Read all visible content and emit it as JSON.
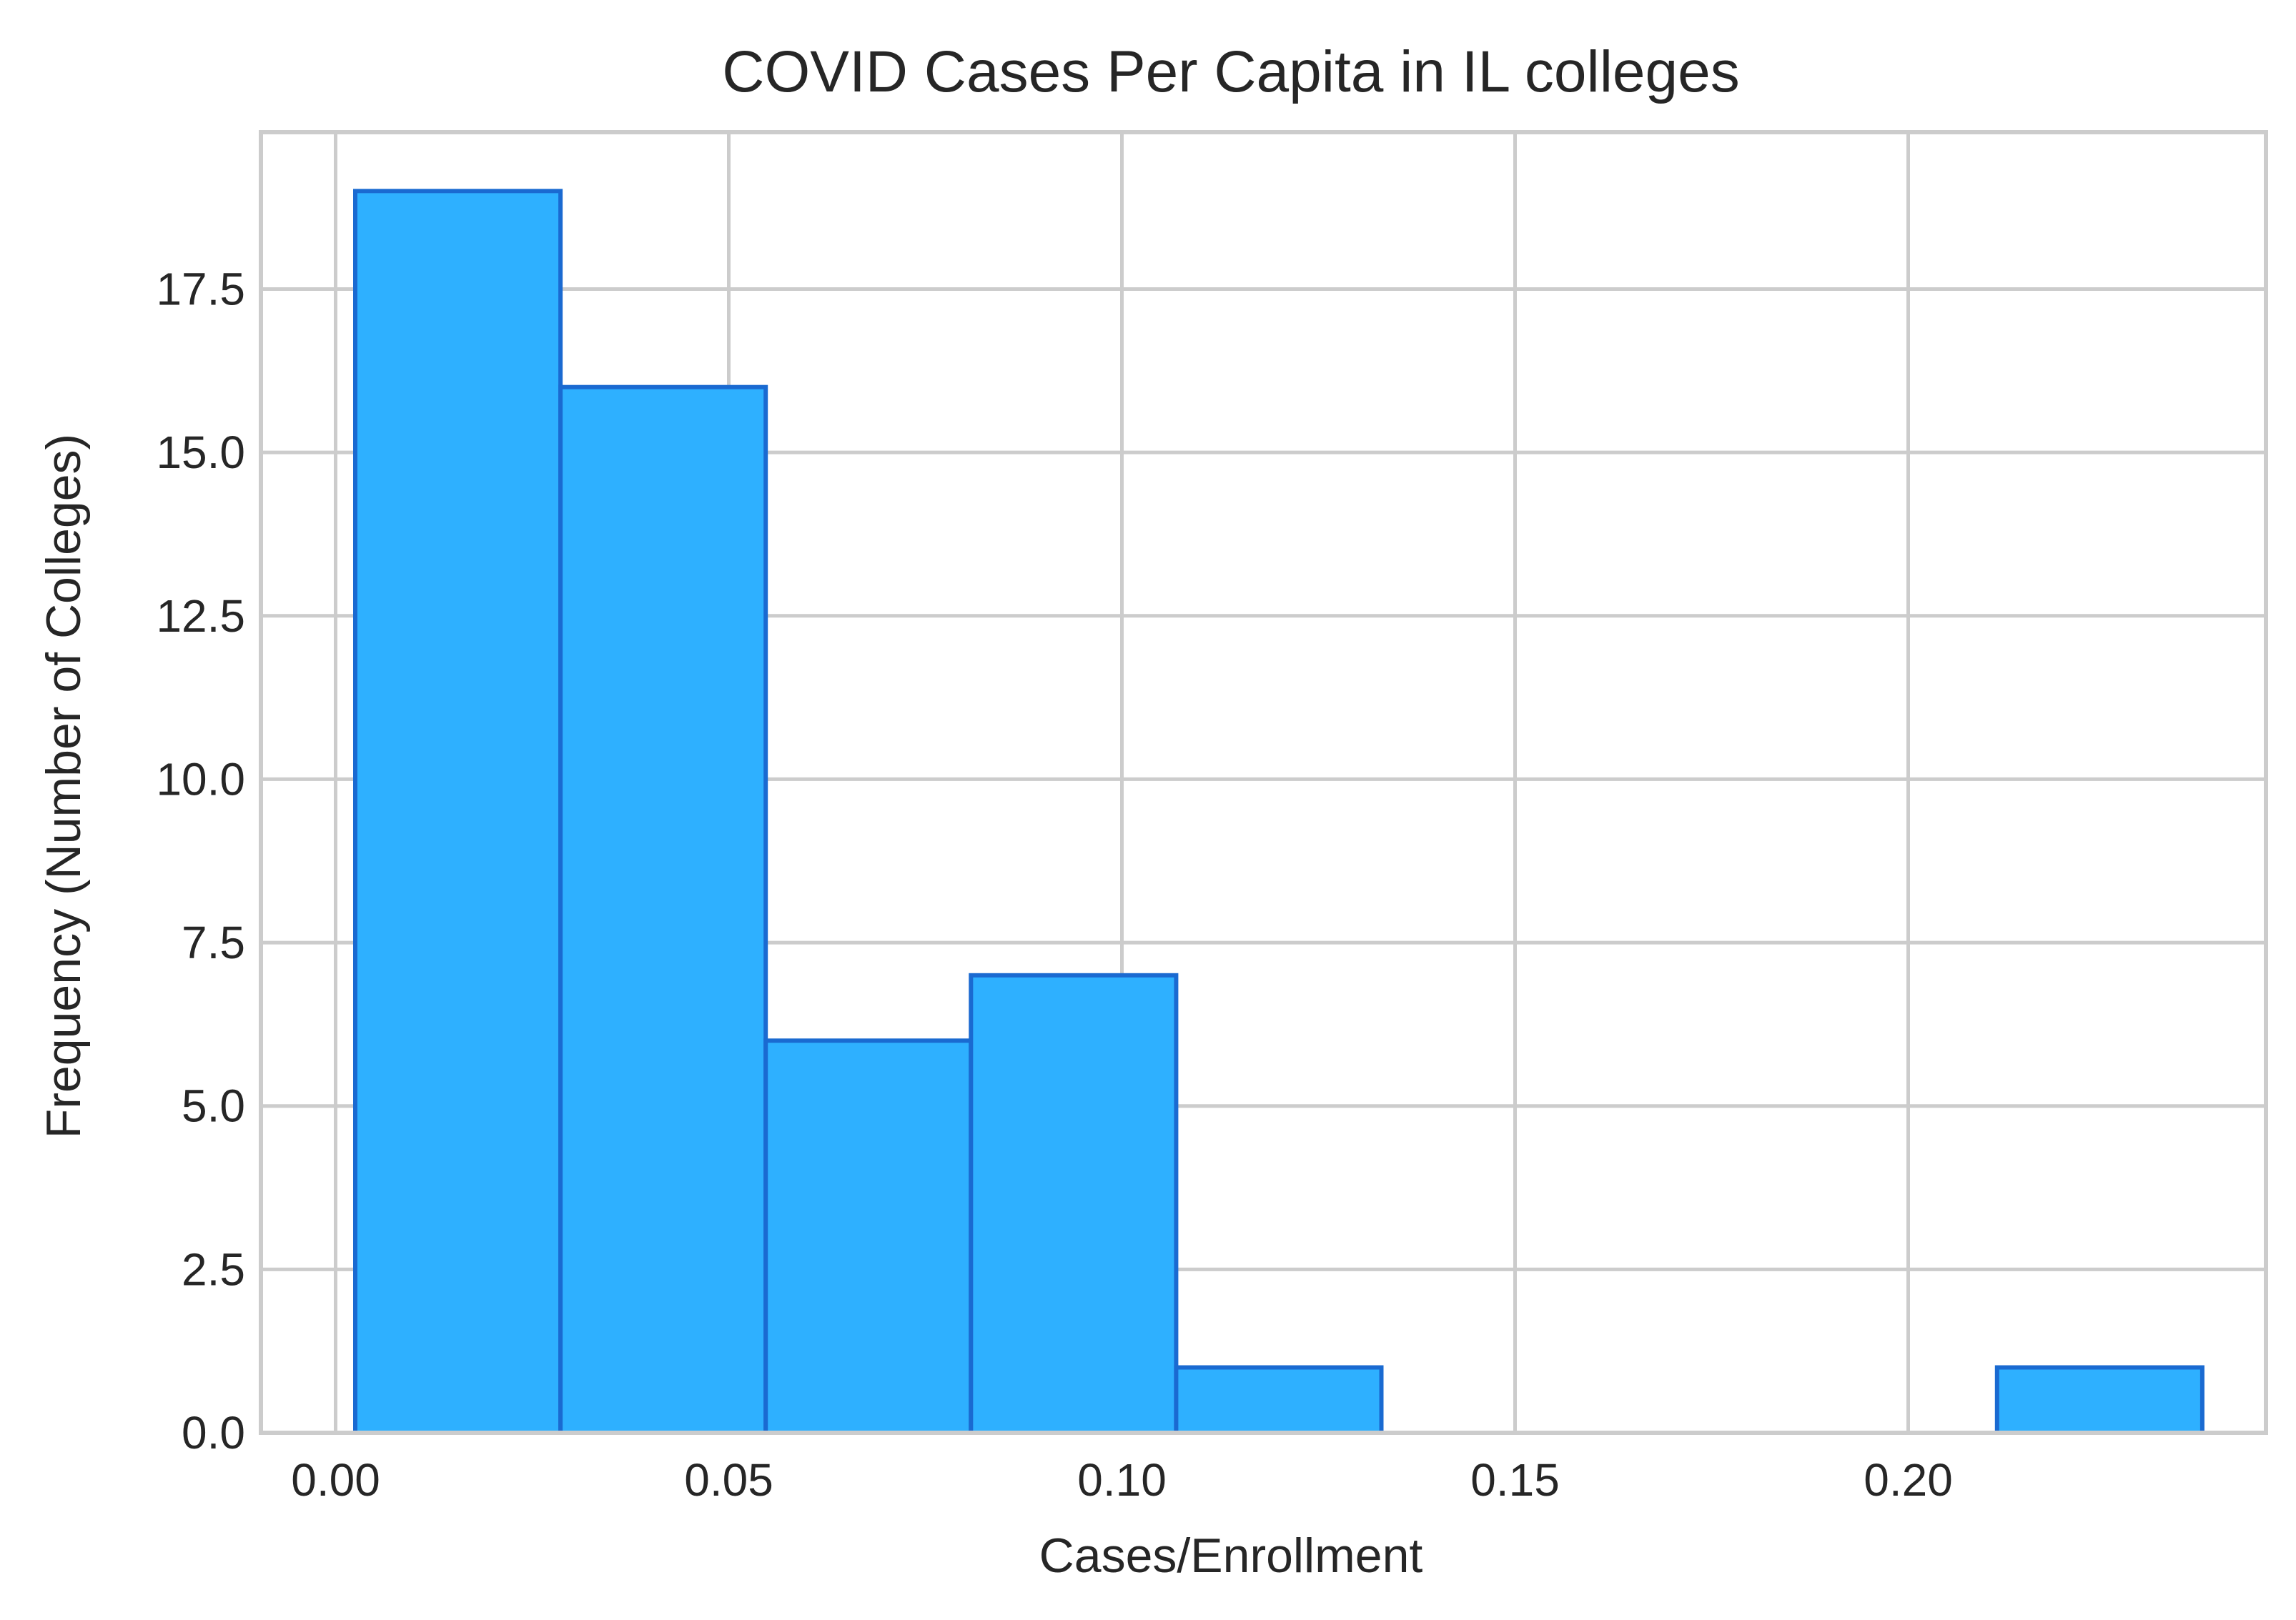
{
  "chart_data": {
    "type": "bar",
    "title": "COVID Cases Per Capita in IL colleges",
    "xlabel": "Cases/Enrollment",
    "ylabel": "Frequency (Number of Colleges)",
    "xlim": [
      -0.0095,
      0.2455
    ],
    "ylim": [
      0,
      19.9
    ],
    "grid": true,
    "bar_color": "#2eb0ff",
    "edge_color": "#1a6ad1",
    "grid_color": "#cccccc",
    "bins": [
      {
        "x0": 0.0025,
        "x1": 0.0286,
        "count": 19
      },
      {
        "x0": 0.0286,
        "x1": 0.0547,
        "count": 16
      },
      {
        "x0": 0.0547,
        "x1": 0.0808,
        "count": 6
      },
      {
        "x0": 0.0808,
        "x1": 0.1069,
        "count": 7
      },
      {
        "x0": 0.1069,
        "x1": 0.133,
        "count": 1
      },
      {
        "x0": 0.133,
        "x1": 0.1591,
        "count": 0
      },
      {
        "x0": 0.1591,
        "x1": 0.1852,
        "count": 0
      },
      {
        "x0": 0.1852,
        "x1": 0.2113,
        "count": 0
      },
      {
        "x0": 0.2113,
        "x1": 0.2374,
        "count": 1
      }
    ],
    "x_ticks": [
      {
        "value": 0.0,
        "label": "0.00"
      },
      {
        "value": 0.05,
        "label": "0.05"
      },
      {
        "value": 0.1,
        "label": "0.10"
      },
      {
        "value": 0.15,
        "label": "0.15"
      },
      {
        "value": 0.2,
        "label": "0.20"
      }
    ],
    "y_ticks": [
      {
        "value": 0.0,
        "label": "0.0"
      },
      {
        "value": 2.5,
        "label": "2.5"
      },
      {
        "value": 5.0,
        "label": "5.0"
      },
      {
        "value": 7.5,
        "label": "7.5"
      },
      {
        "value": 10.0,
        "label": "10.0"
      },
      {
        "value": 12.5,
        "label": "12.5"
      },
      {
        "value": 15.0,
        "label": "15.0"
      },
      {
        "value": 17.5,
        "label": "17.5"
      }
    ]
  }
}
